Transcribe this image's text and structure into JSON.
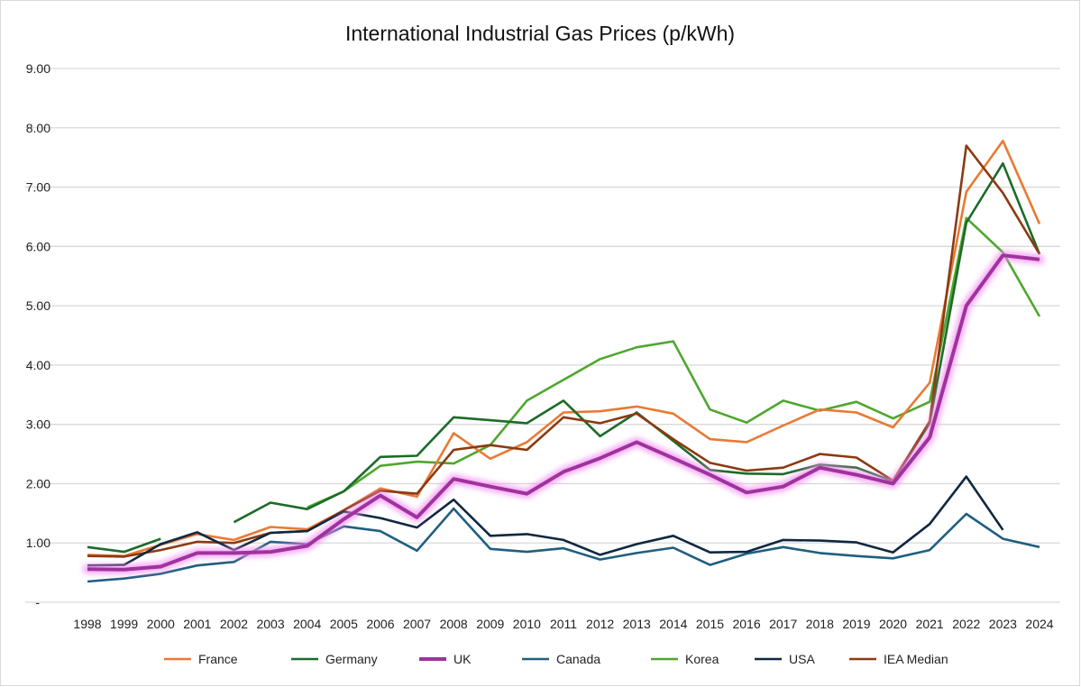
{
  "chart_data": {
    "type": "line",
    "title": "International Industrial Gas Prices (p/kWh)",
    "xlabel": "",
    "ylabel": "",
    "ylim": [
      0,
      9
    ],
    "yticks": [
      "-",
      "1.00",
      "2.00",
      "3.00",
      "4.00",
      "5.00",
      "6.00",
      "7.00",
      "8.00",
      "9.00"
    ],
    "grid": true,
    "legend_position": "bottom",
    "x": [
      "1998",
      "1999",
      "2000",
      "2001",
      "2002",
      "2003",
      "2004",
      "2005",
      "2006",
      "2007",
      "2008",
      "2009",
      "2010",
      "2011",
      "2012",
      "2013",
      "2014",
      "2015",
      "2016",
      "2017",
      "2018",
      "2019",
      "2020",
      "2021",
      "2022",
      "2023",
      "2024"
    ],
    "series": [
      {
        "name": "France",
        "color": "#E97A34",
        "values": [
          0.8,
          0.78,
          0.97,
          1.15,
          1.05,
          1.27,
          1.23,
          1.55,
          1.92,
          1.78,
          2.85,
          2.42,
          2.7,
          3.2,
          3.22,
          3.3,
          3.18,
          2.75,
          2.7,
          2.98,
          3.25,
          3.2,
          2.95,
          3.7,
          6.92,
          7.78,
          6.38
        ]
      },
      {
        "name": "Germany",
        "color": "#1C6B28",
        "values": [
          0.93,
          0.85,
          1.07,
          null,
          1.35,
          1.68,
          1.57,
          1.87,
          2.45,
          2.47,
          3.12,
          3.07,
          3.02,
          3.4,
          2.8,
          3.2,
          2.72,
          2.23,
          2.17,
          2.16,
          2.32,
          2.27,
          2.04,
          3.02,
          6.4,
          7.4,
          5.87
        ]
      },
      {
        "name": "UK",
        "color": "#A0329E",
        "highlight": true,
        "values": [
          0.56,
          0.55,
          0.6,
          0.83,
          0.83,
          0.85,
          0.95,
          1.4,
          1.8,
          1.43,
          2.08,
          1.95,
          1.83,
          2.2,
          2.43,
          2.7,
          2.43,
          2.15,
          1.85,
          1.95,
          2.27,
          2.15,
          2.0,
          2.78,
          5.0,
          5.85,
          5.78
        ]
      },
      {
        "name": "Canada",
        "color": "#1F5F80",
        "values": [
          0.35,
          0.4,
          0.48,
          0.62,
          0.68,
          1.02,
          0.98,
          1.28,
          1.2,
          0.87,
          1.58,
          0.9,
          0.85,
          0.91,
          0.72,
          0.83,
          0.92,
          0.63,
          0.82,
          0.93,
          0.83,
          0.78,
          0.74,
          0.88,
          1.49,
          1.07,
          0.93
        ]
      },
      {
        "name": "Korea",
        "color": "#4EA72E",
        "values": [
          null,
          null,
          null,
          null,
          null,
          null,
          1.6,
          1.87,
          2.3,
          2.37,
          2.34,
          2.65,
          3.4,
          3.75,
          4.1,
          4.3,
          4.4,
          3.25,
          3.03,
          3.4,
          3.23,
          3.38,
          3.1,
          3.38,
          6.48,
          5.9,
          4.82
        ]
      },
      {
        "name": "USA",
        "color": "#0E2841",
        "values": [
          0.62,
          0.63,
          0.98,
          1.18,
          0.88,
          1.17,
          1.2,
          1.53,
          1.42,
          1.26,
          1.73,
          1.12,
          1.15,
          1.05,
          0.8,
          0.98,
          1.12,
          0.84,
          0.85,
          1.05,
          1.04,
          1.01,
          0.84,
          1.32,
          2.12,
          1.22,
          null
        ]
      },
      {
        "name": "IEA Median",
        "color": "#8B3A12",
        "values": [
          0.78,
          0.77,
          0.88,
          1.02,
          1.0,
          1.17,
          1.2,
          1.55,
          1.88,
          1.83,
          2.57,
          2.65,
          2.57,
          3.12,
          3.02,
          3.18,
          2.75,
          2.35,
          2.22,
          2.27,
          2.5,
          2.44,
          2.05,
          3.05,
          7.7,
          6.9,
          5.87
        ]
      }
    ]
  }
}
